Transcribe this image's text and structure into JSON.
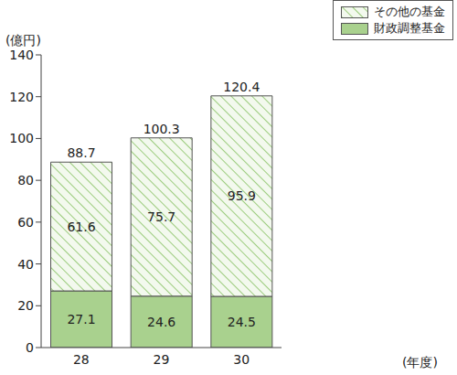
{
  "chart_data": {
    "type": "bar",
    "stacked": true,
    "data_labels": true,
    "categories": [
      "28",
      "29",
      "30"
    ],
    "series": [
      {
        "name": "財政調整基金",
        "color": "#a9d18e",
        "values": [
          27.1,
          24.6,
          24.5
        ]
      },
      {
        "name": "その他の基金",
        "color": "#9ccc7e",
        "values": [
          61.6,
          75.7,
          95.9
        ]
      }
    ],
    "totals": [
      88.7,
      100.3,
      120.4
    ],
    "ylim": [
      0,
      140
    ],
    "yticks": [
      0,
      20,
      40,
      60,
      80,
      100,
      120,
      140
    ],
    "y_label": "(億円)",
    "x_label": "(年度)",
    "legend": "upper right",
    "grid": false
  }
}
